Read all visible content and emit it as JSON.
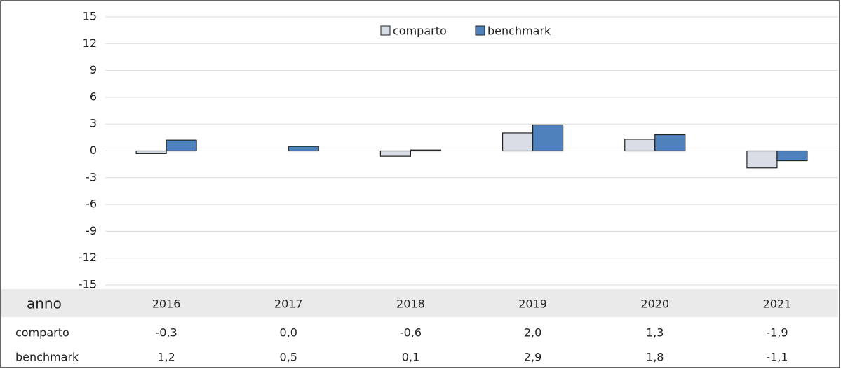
{
  "chart_data": {
    "type": "bar",
    "categories": [
      "2016",
      "2017",
      "2018",
      "2019",
      "2020",
      "2021"
    ],
    "series": [
      {
        "name": "comparto",
        "color": "#d9dde6",
        "values": [
          -0.3,
          0.0,
          -0.6,
          2.0,
          1.3,
          -1.9
        ],
        "value_labels": [
          "-0,3",
          "0,0",
          "-0,6",
          "2,0",
          "1,3",
          "-1,9"
        ]
      },
      {
        "name": "benchmark",
        "color": "#4f81bd",
        "values": [
          1.2,
          0.5,
          0.1,
          2.9,
          1.8,
          -1.1
        ],
        "value_labels": [
          "1,2",
          "0,5",
          "0,1",
          "2,9",
          "1,8",
          "-1,1"
        ]
      }
    ],
    "table_header": "anno",
    "ylim": [
      -15,
      15
    ],
    "yticks": [
      -15,
      -12,
      -9,
      -6,
      -3,
      0,
      3,
      6,
      9,
      12,
      15
    ],
    "grid": true
  }
}
